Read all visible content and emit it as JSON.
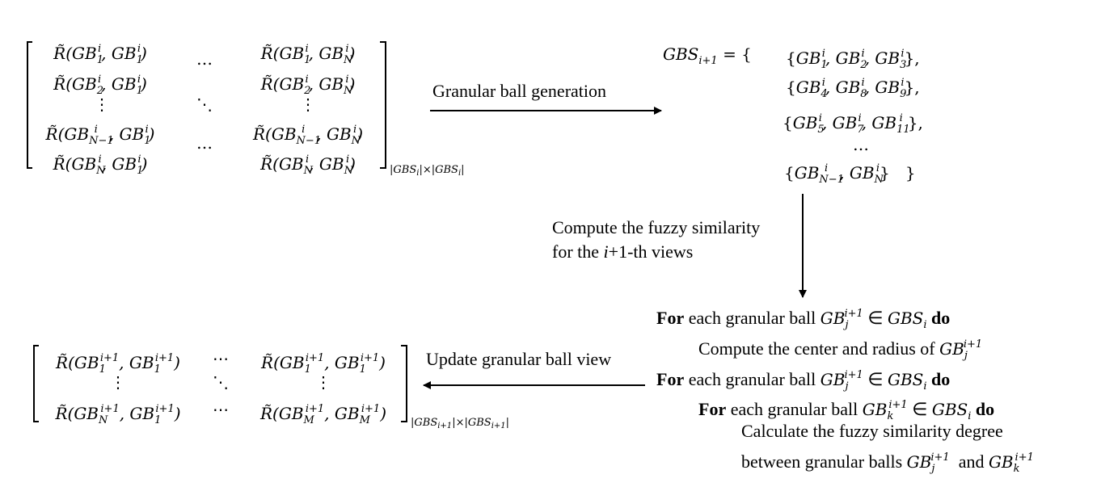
{
  "matrix1": {
    "rows": [
      [
        "R̃(GB₁ⁱ, GB₁ⁱ)",
        "…",
        "R̃(GB₁ⁱ, GBₙⁱ)"
      ],
      [
        "R̃(GB₂ⁱ, GB₁ⁱ)",
        "",
        "R̃(GB₂ⁱ, GBₙⁱ)"
      ],
      [
        "⋮",
        "⋱",
        "⋮"
      ],
      [
        "R̃(GBₙ₋₁ⁱ, GB₁ⁱ)",
        "…",
        "R̃(GBₙ₋₁ⁱ, GBₙⁱ)"
      ],
      [
        "R̃(GBₙⁱ, GB₁ⁱ)",
        "",
        "R̃(GBₙⁱ, GBₙⁱ)"
      ]
    ],
    "size": "|GBSᵢ|×|GBSᵢ|"
  },
  "arrow_generation_label": "Granular ball generation",
  "gbs_set": {
    "lhs": "GBSᵢ₊₁ = {",
    "groups": [
      "{GB₁ⁱ, GB₂ⁱ, GB₃ⁱ},",
      "{GB₄ⁱ, GB₈ⁱ, GB₉ⁱ},",
      "{GB₅ⁱ, GB₇ⁱ, GB₁₁ⁱ},",
      "…",
      "{GBₙ₋₁ⁱ, GBₙⁱ}"
    ],
    "close": "}"
  },
  "arrow_similarity_label": {
    "line1": "Compute the fuzzy similarity",
    "line2_prefix": "for the ",
    "line2_var": "i",
    "line2_suffix": "+1-th views"
  },
  "algorithm": {
    "for_kw": "For",
    "do_kw": "do",
    "line1": "each granular ball GBⱼⁱ⁺¹ ∈ GBSᵢ",
    "line2": "Compute the center and radius of GBⱼⁱ⁺¹",
    "line3": "each granular ball GBⱼⁱ⁺¹ ∈ GBSᵢ",
    "line4": "each granular ball GBₖⁱ⁺¹ ∈ GBSᵢ",
    "line5": "Calculate the fuzzy similarity degree",
    "line6": "between granular balls GBⱼⁱ⁺¹ and GBₖⁱ⁺¹"
  },
  "arrow_update_label": "Update granular ball view",
  "matrix2": {
    "rows": [
      [
        "R̃(GB₁ⁱ⁺¹, GB₁ⁱ⁺¹)",
        "⋯",
        "R̃(GB₁ⁱ⁺¹, GB₁ⁱ⁺¹)"
      ],
      [
        "⋮",
        "⋱",
        "⋮"
      ],
      [
        "R̃(GBₙⁱ⁺¹, GB₁ⁱ⁺¹)",
        "⋯",
        "R̃(GBₘⁱ⁺¹, GBₘⁱ⁺¹)"
      ]
    ],
    "size": "|GBSᵢ₊₁|×|GBSᵢ₊₁|"
  }
}
